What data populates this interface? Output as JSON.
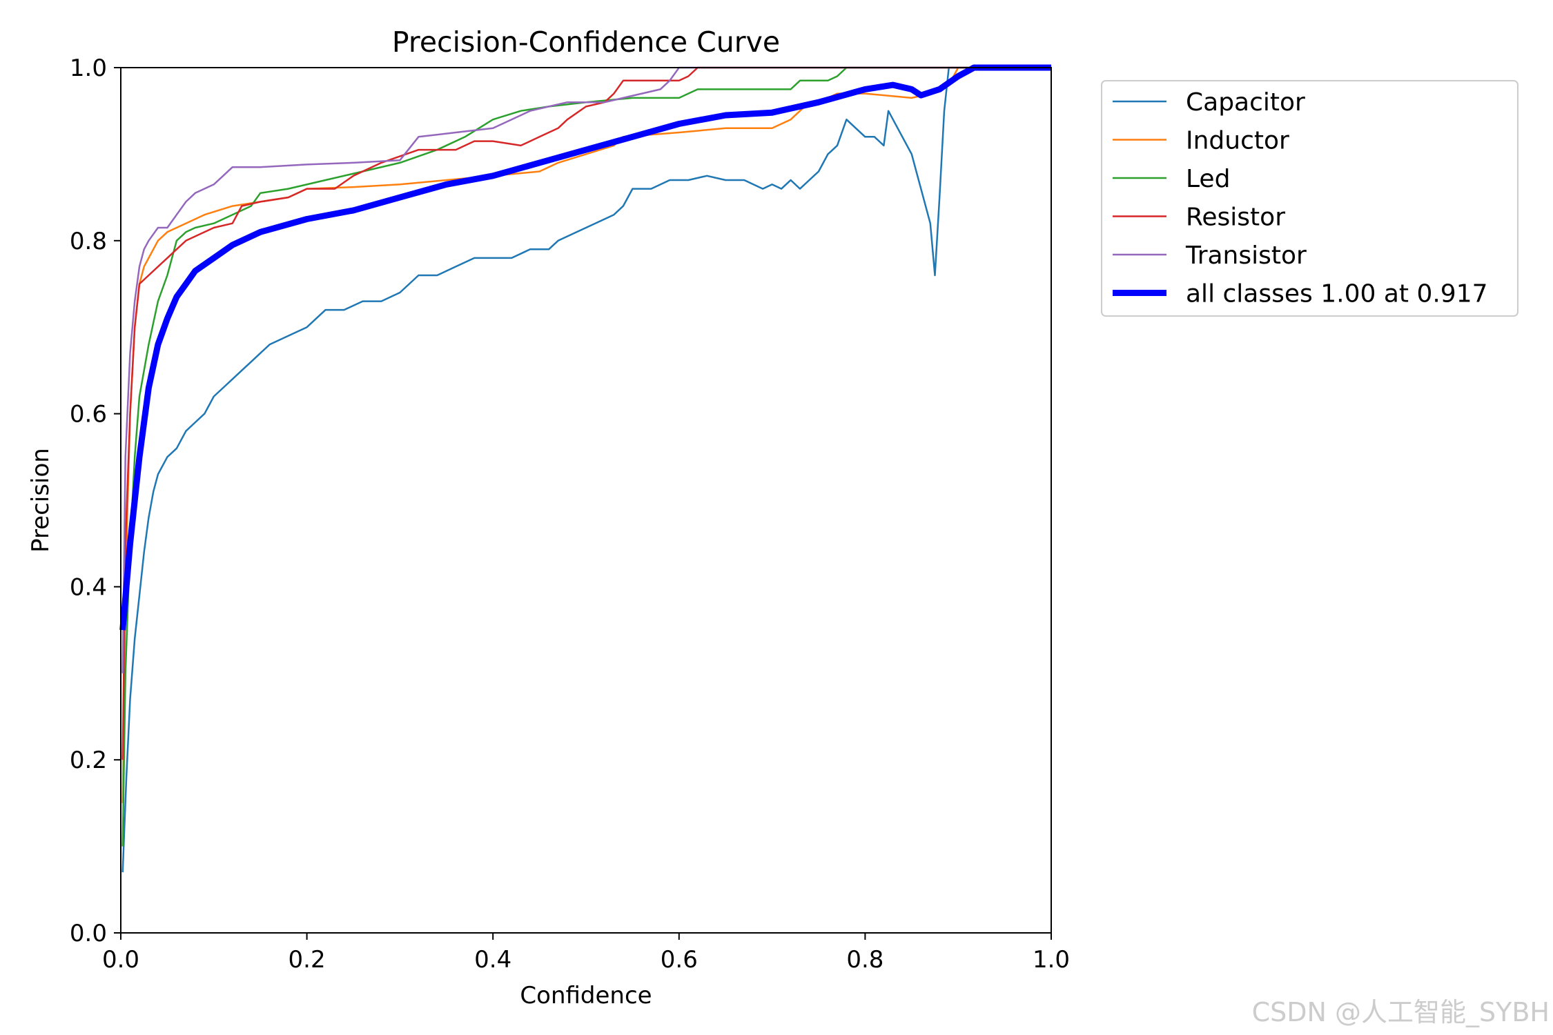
{
  "chart_data": {
    "type": "line",
    "title": "Precision-Confidence Curve",
    "xlabel": "Confidence",
    "ylabel": "Precision",
    "xlim": [
      0,
      1
    ],
    "ylim": [
      0,
      1
    ],
    "x_ticks": [
      "0.0",
      "0.2",
      "0.4",
      "0.6",
      "0.8",
      "1.0"
    ],
    "y_ticks": [
      "0.0",
      "0.2",
      "0.4",
      "0.6",
      "0.8",
      "1.0"
    ],
    "grid": false,
    "legend_position": "outside-upper-right",
    "series": [
      {
        "name": "Capacitor",
        "color": "#1f77b4",
        "points": [
          [
            0.002,
            0.07
          ],
          [
            0.006,
            0.18
          ],
          [
            0.01,
            0.27
          ],
          [
            0.015,
            0.34
          ],
          [
            0.02,
            0.39
          ],
          [
            0.025,
            0.44
          ],
          [
            0.03,
            0.48
          ],
          [
            0.035,
            0.51
          ],
          [
            0.04,
            0.53
          ],
          [
            0.05,
            0.55
          ],
          [
            0.06,
            0.56
          ],
          [
            0.07,
            0.58
          ],
          [
            0.08,
            0.59
          ],
          [
            0.09,
            0.6
          ],
          [
            0.1,
            0.62
          ],
          [
            0.11,
            0.63
          ],
          [
            0.12,
            0.64
          ],
          [
            0.13,
            0.65
          ],
          [
            0.14,
            0.66
          ],
          [
            0.15,
            0.67
          ],
          [
            0.16,
            0.68
          ],
          [
            0.18,
            0.69
          ],
          [
            0.2,
            0.7
          ],
          [
            0.22,
            0.72
          ],
          [
            0.24,
            0.72
          ],
          [
            0.26,
            0.73
          ],
          [
            0.28,
            0.73
          ],
          [
            0.3,
            0.74
          ],
          [
            0.32,
            0.76
          ],
          [
            0.34,
            0.76
          ],
          [
            0.36,
            0.77
          ],
          [
            0.38,
            0.78
          ],
          [
            0.4,
            0.78
          ],
          [
            0.42,
            0.78
          ],
          [
            0.44,
            0.79
          ],
          [
            0.46,
            0.79
          ],
          [
            0.47,
            0.8
          ],
          [
            0.49,
            0.81
          ],
          [
            0.51,
            0.82
          ],
          [
            0.53,
            0.83
          ],
          [
            0.54,
            0.84
          ],
          [
            0.55,
            0.86
          ],
          [
            0.57,
            0.86
          ],
          [
            0.59,
            0.87
          ],
          [
            0.61,
            0.87
          ],
          [
            0.63,
            0.875
          ],
          [
            0.65,
            0.87
          ],
          [
            0.67,
            0.87
          ],
          [
            0.69,
            0.86
          ],
          [
            0.7,
            0.865
          ],
          [
            0.71,
            0.86
          ],
          [
            0.72,
            0.87
          ],
          [
            0.73,
            0.86
          ],
          [
            0.74,
            0.87
          ],
          [
            0.75,
            0.88
          ],
          [
            0.76,
            0.9
          ],
          [
            0.77,
            0.91
          ],
          [
            0.78,
            0.94
          ],
          [
            0.79,
            0.93
          ],
          [
            0.8,
            0.92
          ],
          [
            0.81,
            0.92
          ],
          [
            0.82,
            0.91
          ],
          [
            0.825,
            0.95
          ],
          [
            0.83,
            0.94
          ],
          [
            0.84,
            0.92
          ],
          [
            0.85,
            0.9
          ],
          [
            0.86,
            0.86
          ],
          [
            0.87,
            0.82
          ],
          [
            0.875,
            0.76
          ],
          [
            0.88,
            0.85
          ],
          [
            0.885,
            0.95
          ],
          [
            0.89,
            1.0
          ],
          [
            1.0,
            1.0
          ]
        ]
      },
      {
        "name": "Inductor",
        "color": "#ff7f0e",
        "points": [
          [
            0.002,
            0.15
          ],
          [
            0.005,
            0.4
          ],
          [
            0.01,
            0.6
          ],
          [
            0.015,
            0.7
          ],
          [
            0.02,
            0.75
          ],
          [
            0.025,
            0.77
          ],
          [
            0.03,
            0.78
          ],
          [
            0.04,
            0.8
          ],
          [
            0.05,
            0.81
          ],
          [
            0.07,
            0.82
          ],
          [
            0.09,
            0.83
          ],
          [
            0.12,
            0.84
          ],
          [
            0.15,
            0.845
          ],
          [
            0.18,
            0.85
          ],
          [
            0.2,
            0.86
          ],
          [
            0.25,
            0.862
          ],
          [
            0.3,
            0.865
          ],
          [
            0.35,
            0.87
          ],
          [
            0.4,
            0.875
          ],
          [
            0.45,
            0.88
          ],
          [
            0.47,
            0.89
          ],
          [
            0.5,
            0.9
          ],
          [
            0.53,
            0.91
          ],
          [
            0.54,
            0.92
          ],
          [
            0.6,
            0.925
          ],
          [
            0.65,
            0.93
          ],
          [
            0.7,
            0.93
          ],
          [
            0.72,
            0.94
          ],
          [
            0.73,
            0.95
          ],
          [
            0.74,
            0.96
          ],
          [
            0.76,
            0.965
          ],
          [
            0.77,
            0.97
          ],
          [
            0.8,
            0.97
          ],
          [
            0.85,
            0.965
          ],
          [
            0.87,
            0.97
          ],
          [
            0.89,
            0.98
          ],
          [
            0.9,
            1.0
          ],
          [
            1.0,
            1.0
          ]
        ]
      },
      {
        "name": "Led",
        "color": "#2ca02c",
        "points": [
          [
            0.002,
            0.1
          ],
          [
            0.005,
            0.3
          ],
          [
            0.01,
            0.45
          ],
          [
            0.015,
            0.55
          ],
          [
            0.02,
            0.62
          ],
          [
            0.03,
            0.68
          ],
          [
            0.04,
            0.73
          ],
          [
            0.05,
            0.76
          ],
          [
            0.06,
            0.8
          ],
          [
            0.07,
            0.81
          ],
          [
            0.08,
            0.815
          ],
          [
            0.1,
            0.82
          ],
          [
            0.12,
            0.83
          ],
          [
            0.14,
            0.84
          ],
          [
            0.15,
            0.855
          ],
          [
            0.18,
            0.86
          ],
          [
            0.22,
            0.87
          ],
          [
            0.26,
            0.88
          ],
          [
            0.3,
            0.89
          ],
          [
            0.34,
            0.905
          ],
          [
            0.37,
            0.92
          ],
          [
            0.4,
            0.94
          ],
          [
            0.43,
            0.95
          ],
          [
            0.46,
            0.955
          ],
          [
            0.5,
            0.96
          ],
          [
            0.55,
            0.965
          ],
          [
            0.6,
            0.965
          ],
          [
            0.62,
            0.975
          ],
          [
            0.68,
            0.975
          ],
          [
            0.72,
            0.975
          ],
          [
            0.73,
            0.985
          ],
          [
            0.76,
            0.985
          ],
          [
            0.77,
            0.99
          ],
          [
            0.78,
            1.0
          ],
          [
            1.0,
            1.0
          ]
        ]
      },
      {
        "name": "Resistor",
        "color": "#d62728",
        "points": [
          [
            0.002,
            0.2
          ],
          [
            0.005,
            0.45
          ],
          [
            0.01,
            0.6
          ],
          [
            0.015,
            0.7
          ],
          [
            0.02,
            0.75
          ],
          [
            0.03,
            0.76
          ],
          [
            0.04,
            0.77
          ],
          [
            0.05,
            0.78
          ],
          [
            0.06,
            0.79
          ],
          [
            0.07,
            0.8
          ],
          [
            0.08,
            0.805
          ],
          [
            0.1,
            0.815
          ],
          [
            0.12,
            0.82
          ],
          [
            0.13,
            0.84
          ],
          [
            0.15,
            0.845
          ],
          [
            0.18,
            0.85
          ],
          [
            0.2,
            0.86
          ],
          [
            0.23,
            0.86
          ],
          [
            0.25,
            0.875
          ],
          [
            0.28,
            0.89
          ],
          [
            0.32,
            0.905
          ],
          [
            0.36,
            0.905
          ],
          [
            0.38,
            0.915
          ],
          [
            0.4,
            0.915
          ],
          [
            0.43,
            0.91
          ],
          [
            0.45,
            0.92
          ],
          [
            0.47,
            0.93
          ],
          [
            0.48,
            0.94
          ],
          [
            0.5,
            0.955
          ],
          [
            0.52,
            0.96
          ],
          [
            0.53,
            0.97
          ],
          [
            0.54,
            0.985
          ],
          [
            0.6,
            0.985
          ],
          [
            0.61,
            0.99
          ],
          [
            0.62,
            1.0
          ],
          [
            1.0,
            1.0
          ]
        ]
      },
      {
        "name": "Transistor",
        "color": "#9467bd",
        "points": [
          [
            0.002,
            0.3
          ],
          [
            0.005,
            0.55
          ],
          [
            0.01,
            0.67
          ],
          [
            0.015,
            0.73
          ],
          [
            0.02,
            0.77
          ],
          [
            0.025,
            0.79
          ],
          [
            0.03,
            0.8
          ],
          [
            0.04,
            0.815
          ],
          [
            0.05,
            0.815
          ],
          [
            0.06,
            0.83
          ],
          [
            0.07,
            0.845
          ],
          [
            0.08,
            0.855
          ],
          [
            0.1,
            0.865
          ],
          [
            0.11,
            0.875
          ],
          [
            0.12,
            0.885
          ],
          [
            0.15,
            0.885
          ],
          [
            0.2,
            0.888
          ],
          [
            0.25,
            0.89
          ],
          [
            0.3,
            0.893
          ],
          [
            0.32,
            0.92
          ],
          [
            0.36,
            0.925
          ],
          [
            0.4,
            0.93
          ],
          [
            0.42,
            0.94
          ],
          [
            0.44,
            0.95
          ],
          [
            0.46,
            0.955
          ],
          [
            0.48,
            0.96
          ],
          [
            0.5,
            0.96
          ],
          [
            0.52,
            0.96
          ],
          [
            0.54,
            0.965
          ],
          [
            0.56,
            0.97
          ],
          [
            0.58,
            0.975
          ],
          [
            0.59,
            0.985
          ],
          [
            0.6,
            1.0
          ],
          [
            1.0,
            1.0
          ]
        ]
      },
      {
        "name": "all classes 1.00 at 0.917",
        "color": "#0000ff",
        "thick": true,
        "points": [
          [
            0.002,
            0.35
          ],
          [
            0.01,
            0.45
          ],
          [
            0.02,
            0.55
          ],
          [
            0.03,
            0.63
          ],
          [
            0.04,
            0.68
          ],
          [
            0.05,
            0.71
          ],
          [
            0.06,
            0.735
          ],
          [
            0.07,
            0.75
          ],
          [
            0.08,
            0.765
          ],
          [
            0.1,
            0.78
          ],
          [
            0.12,
            0.795
          ],
          [
            0.15,
            0.81
          ],
          [
            0.2,
            0.825
          ],
          [
            0.25,
            0.835
          ],
          [
            0.3,
            0.85
          ],
          [
            0.35,
            0.865
          ],
          [
            0.4,
            0.875
          ],
          [
            0.45,
            0.89
          ],
          [
            0.5,
            0.905
          ],
          [
            0.55,
            0.92
          ],
          [
            0.6,
            0.935
          ],
          [
            0.65,
            0.945
          ],
          [
            0.7,
            0.948
          ],
          [
            0.75,
            0.96
          ],
          [
            0.8,
            0.975
          ],
          [
            0.83,
            0.98
          ],
          [
            0.85,
            0.975
          ],
          [
            0.86,
            0.968
          ],
          [
            0.88,
            0.975
          ],
          [
            0.9,
            0.99
          ],
          [
            0.917,
            1.0
          ],
          [
            1.0,
            1.0
          ]
        ]
      }
    ]
  },
  "watermark": "CSDN @人工智能_SYBH"
}
